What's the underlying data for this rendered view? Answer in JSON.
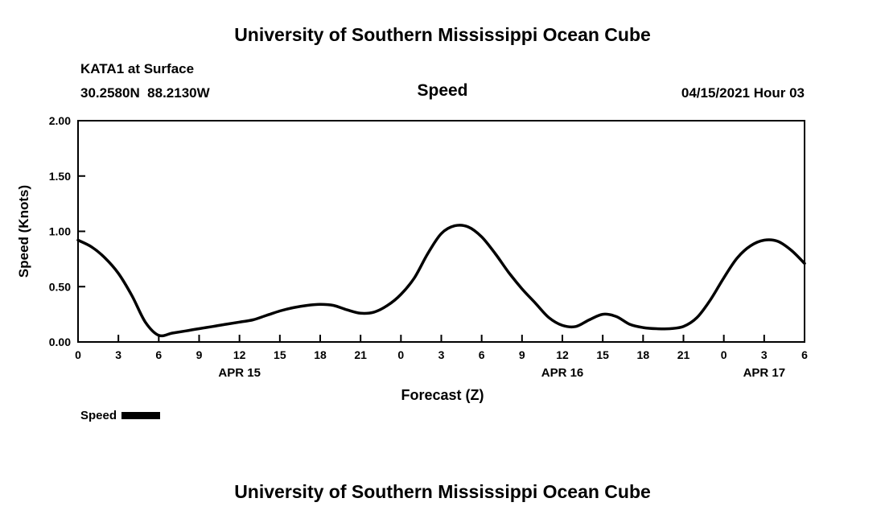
{
  "titles": {
    "top": "University of Southern Mississippi Ocean Cube",
    "bottom": "University of Southern Mississippi Ocean Cube"
  },
  "header": {
    "station": "KATA1 at Surface",
    "coords": "30.2580N  88.2130W",
    "plot_title": "Speed",
    "valid_time": "04/15/2021 Hour 03"
  },
  "legend": {
    "label": "Speed",
    "color": "#000000"
  },
  "chart_data": {
    "type": "line",
    "title": "Speed",
    "xlabel": "Forecast (Z)",
    "ylabel": "Speed (Knots)",
    "ylim": [
      0.0,
      2.0
    ],
    "yticks": [
      0.0,
      0.5,
      1.0,
      1.5,
      2.0
    ],
    "ytick_labels": [
      "0.00",
      "0.50",
      "1.00",
      "1.50",
      "2.00"
    ],
    "x_hours_range": [
      0,
      54
    ],
    "xtick_step": 3,
    "xtick_labels": [
      "0",
      "3",
      "6",
      "9",
      "12",
      "15",
      "18",
      "21",
      "0",
      "3",
      "6",
      "9",
      "12",
      "15",
      "18",
      "21",
      "0",
      "3",
      "6"
    ],
    "date_labels": [
      {
        "text": "APR 15",
        "hour": 12
      },
      {
        "text": "APR 16",
        "hour": 36
      },
      {
        "text": "APR 17",
        "hour": 51
      }
    ],
    "grid": false,
    "legend_position": "below-left",
    "line_color": "#000000",
    "series": [
      {
        "name": "Speed",
        "x_hours": [
          0,
          1,
          2,
          3,
          4,
          5,
          6,
          7,
          8,
          9,
          10,
          11,
          12,
          13,
          14,
          15,
          16,
          17,
          18,
          19,
          20,
          21,
          22,
          23,
          24,
          25,
          26,
          27,
          28,
          29,
          30,
          31,
          32,
          33,
          34,
          35,
          36,
          37,
          38,
          39,
          40,
          41,
          42,
          43,
          44,
          45,
          46,
          47,
          48,
          49,
          50,
          51,
          52,
          53,
          54
        ],
        "values": [
          0.92,
          0.86,
          0.76,
          0.62,
          0.42,
          0.18,
          0.06,
          0.08,
          0.1,
          0.12,
          0.14,
          0.16,
          0.18,
          0.2,
          0.24,
          0.28,
          0.31,
          0.33,
          0.34,
          0.33,
          0.29,
          0.26,
          0.27,
          0.33,
          0.43,
          0.58,
          0.8,
          0.98,
          1.05,
          1.04,
          0.95,
          0.8,
          0.63,
          0.48,
          0.35,
          0.22,
          0.15,
          0.14,
          0.2,
          0.25,
          0.23,
          0.16,
          0.13,
          0.12,
          0.12,
          0.14,
          0.22,
          0.38,
          0.58,
          0.76,
          0.87,
          0.92,
          0.91,
          0.83,
          0.71
        ]
      }
    ]
  }
}
